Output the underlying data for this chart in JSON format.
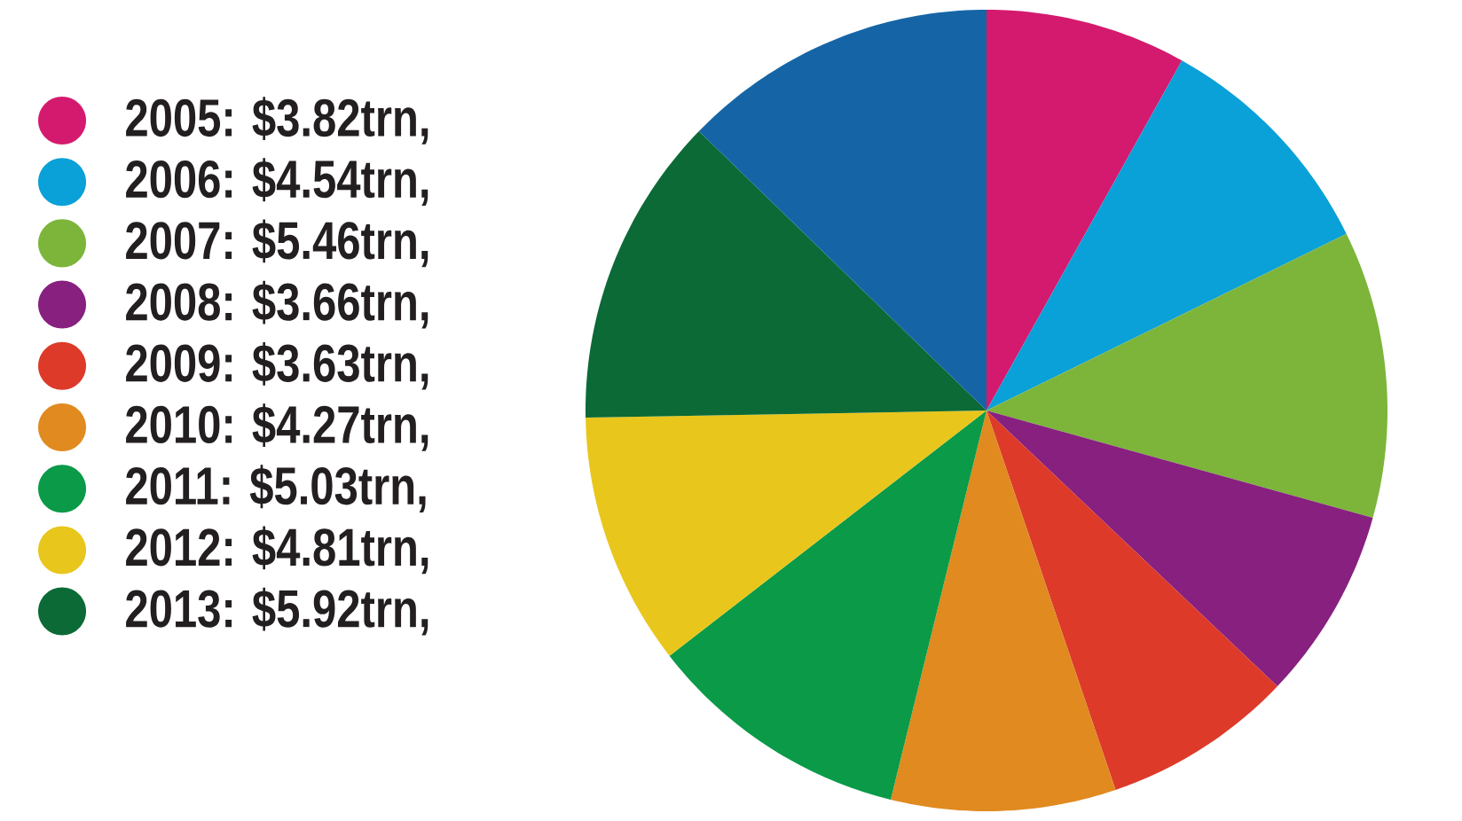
{
  "chart_data": {
    "type": "pie",
    "categories": [
      "2005",
      "2006",
      "2007",
      "2008",
      "2009",
      "2010",
      "2011",
      "2012",
      "2013",
      null
    ],
    "values": [
      3.82,
      4.54,
      5.46,
      3.66,
      3.63,
      4.27,
      5.03,
      4.81,
      5.92,
      6.0
    ],
    "value_labels": [
      ": $3.82trn,",
      ": $4.54trn,",
      ": $5.46trn,",
      ": $3.66trn,",
      ": $3.63trn,",
      ": $4.27trn,",
      ": $5.03trn,",
      ": $4.81trn,",
      ": $5.92trn,",
      null
    ],
    "colors": [
      "#d41a6e",
      "#0aa0d8",
      "#7cb53a",
      "#87207f",
      "#dd3a2a",
      "#e08a20",
      "#0a9a48",
      "#e8c61c",
      "#0b6a36",
      "#1565a6"
    ],
    "legend": "left"
  }
}
